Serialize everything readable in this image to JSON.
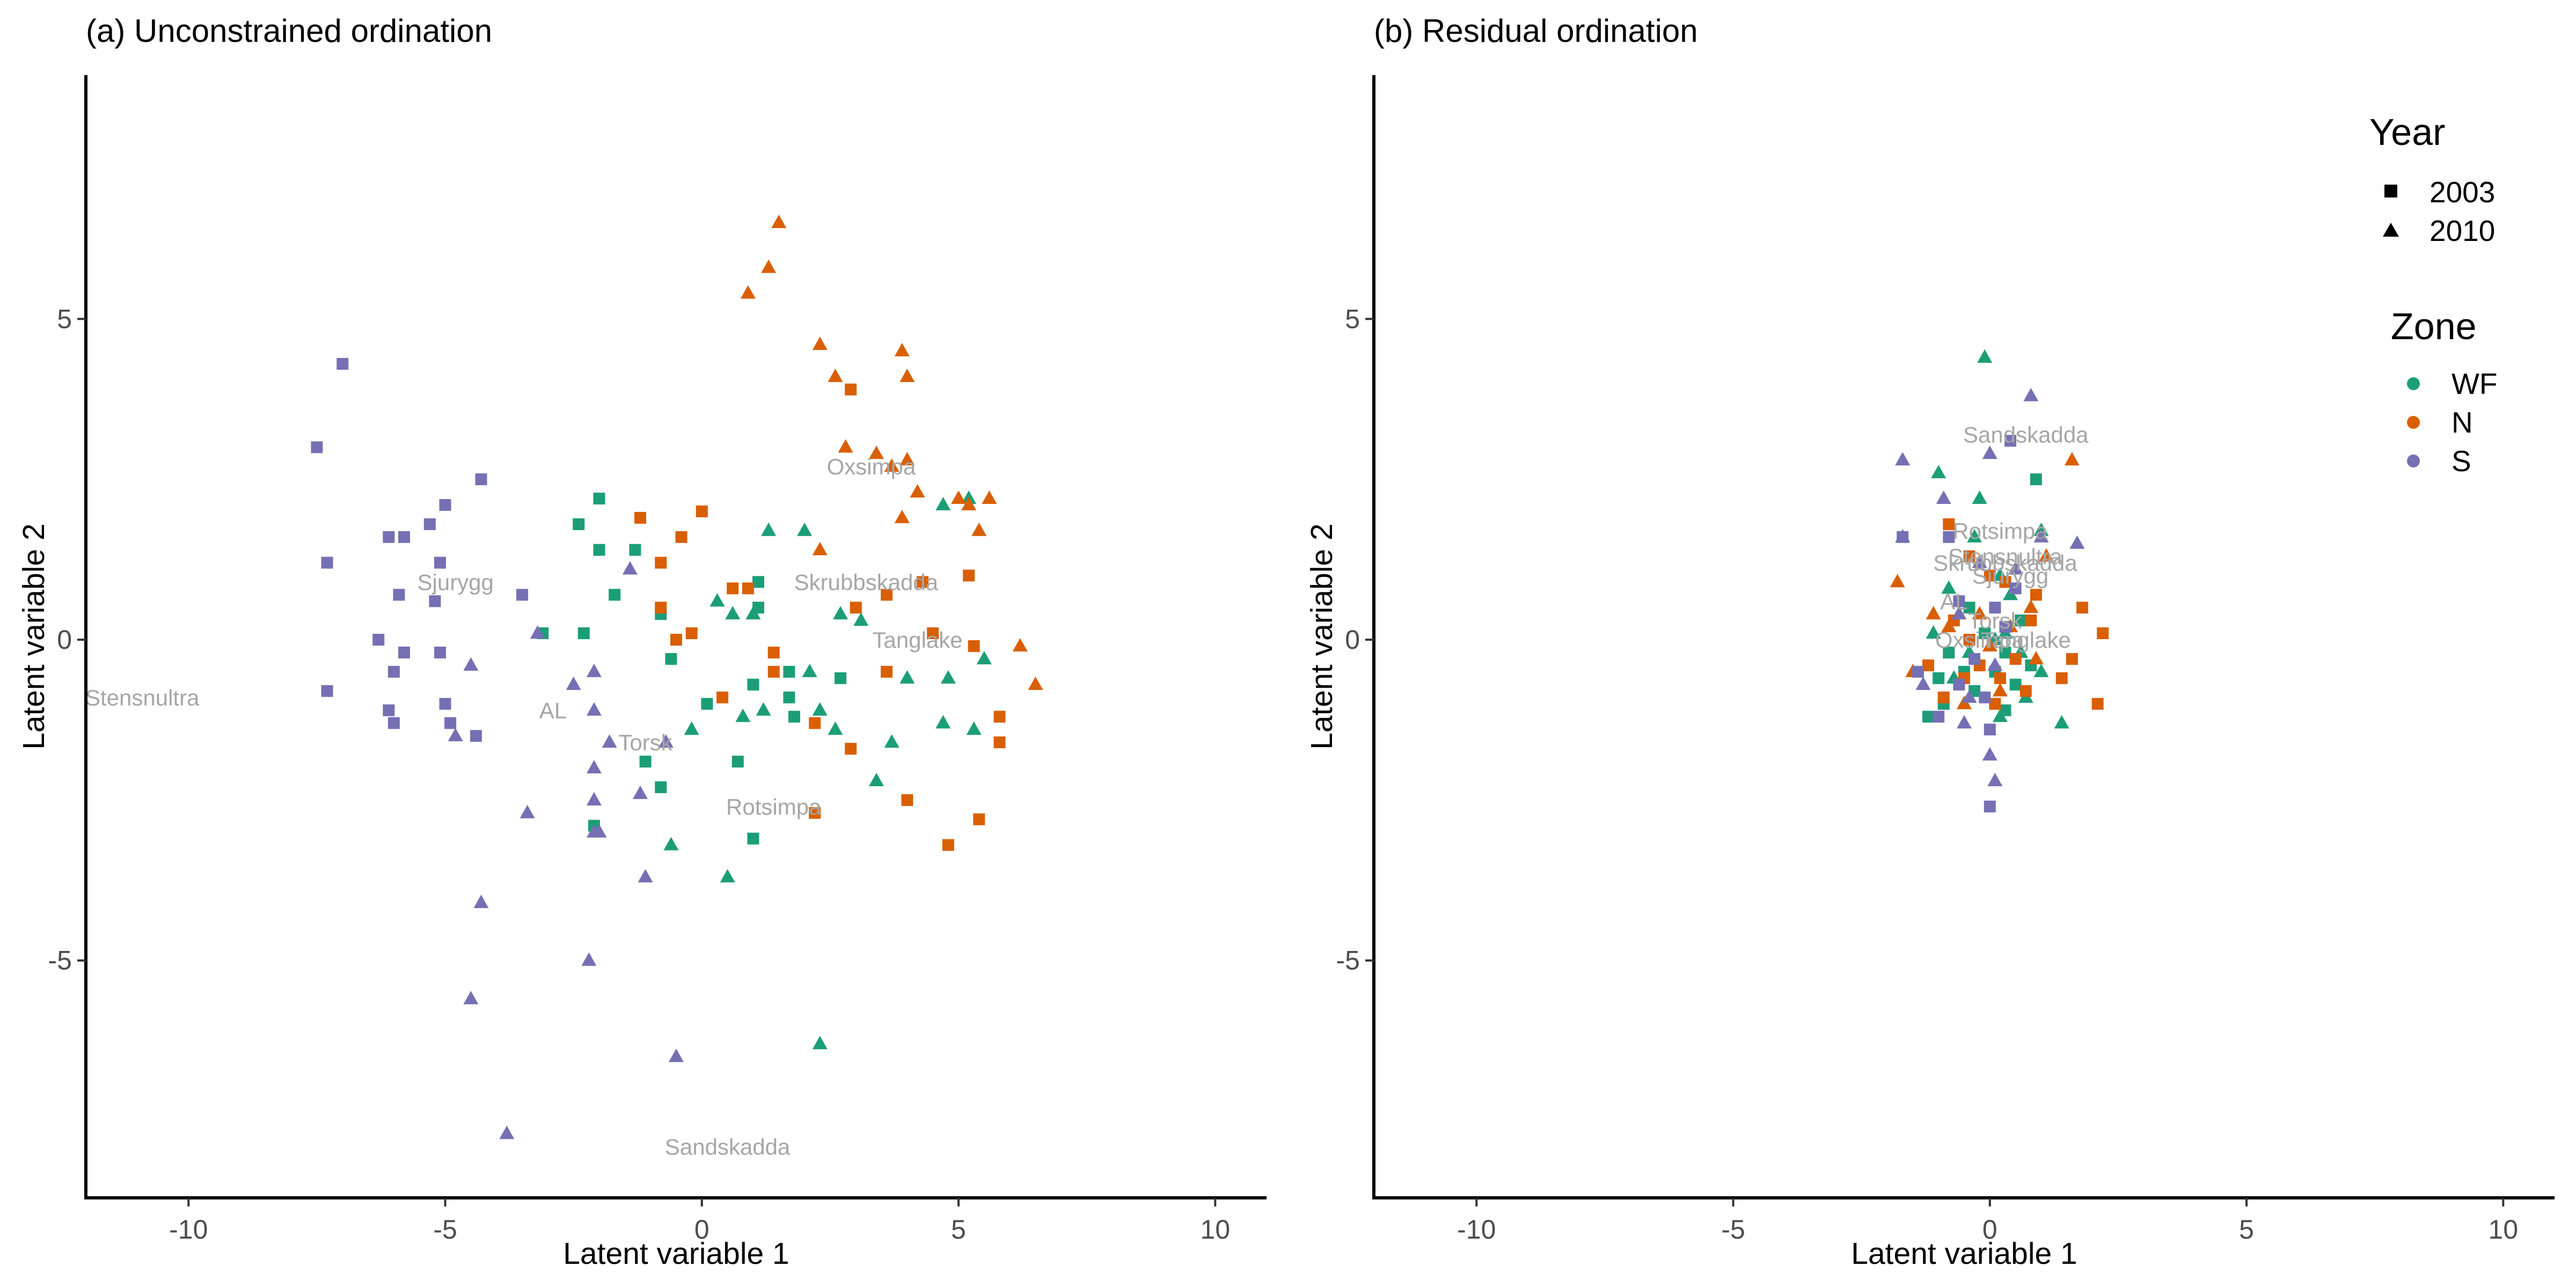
{
  "chart_data": [
    {
      "type": "scatter",
      "title": "(a) Unconstrained ordination",
      "xlabel": "Latent variable 1",
      "ylabel": "Latent variable 2",
      "xlim": [
        -12,
        11
      ],
      "ylim": [
        -8.7,
        8.8
      ],
      "xticks": [
        -10,
        -5,
        0,
        5,
        10
      ],
      "yticks": [
        5,
        0,
        -5
      ],
      "tick_labels_x": [
        "-10",
        "-5",
        "0",
        "5",
        "10"
      ],
      "tick_labels_y": [
        "5",
        "0",
        "-5"
      ],
      "grid": false,
      "points": {
        "WF_2003": [
          [
            -2.0,
            2.2
          ],
          [
            -2.4,
            1.8
          ],
          [
            -2.0,
            1.4
          ],
          [
            -1.3,
            1.4
          ],
          [
            -1.7,
            0.7
          ],
          [
            -2.3,
            0.1
          ],
          [
            -3.1,
            0.1
          ],
          [
            -0.8,
            0.4
          ],
          [
            -0.6,
            -0.3
          ],
          [
            1.1,
            0.9
          ],
          [
            1.1,
            0.5
          ],
          [
            0.1,
            -1.0
          ],
          [
            1.7,
            -0.5
          ],
          [
            1.7,
            -0.9
          ],
          [
            1.0,
            -0.7
          ],
          [
            1.8,
            -1.2
          ],
          [
            2.7,
            -0.6
          ],
          [
            0.7,
            -1.9
          ],
          [
            -1.1,
            -1.9
          ],
          [
            -0.8,
            -2.3
          ],
          [
            -2.1,
            -2.9
          ],
          [
            1.0,
            -3.1
          ]
        ],
        "WF_2010": [
          [
            1.3,
            1.7
          ],
          [
            2.0,
            1.7
          ],
          [
            0.3,
            0.6
          ],
          [
            0.6,
            0.4
          ],
          [
            1.0,
            0.4
          ],
          [
            2.7,
            0.4
          ],
          [
            3.1,
            0.3
          ],
          [
            2.1,
            -0.5
          ],
          [
            2.3,
            -1.1
          ],
          [
            2.6,
            -1.4
          ],
          [
            0.8,
            -1.2
          ],
          [
            -0.2,
            -1.4
          ],
          [
            1.2,
            -1.1
          ],
          [
            3.4,
            -2.2
          ],
          [
            -0.6,
            -3.2
          ],
          [
            0.5,
            -3.7
          ],
          [
            4.7,
            2.1
          ],
          [
            5.2,
            2.2
          ],
          [
            4.0,
            -0.6
          ],
          [
            4.8,
            -0.6
          ],
          [
            3.7,
            -1.6
          ],
          [
            4.7,
            -1.3
          ],
          [
            5.3,
            -1.4
          ],
          [
            5.5,
            -0.3
          ],
          [
            2.3,
            -6.3
          ]
        ],
        "N_2003": [
          [
            -1.2,
            1.9
          ],
          [
            -0.4,
            1.6
          ],
          [
            0.0,
            2.0
          ],
          [
            -0.8,
            1.2
          ],
          [
            0.9,
            0.8
          ],
          [
            -0.8,
            0.5
          ],
          [
            0.6,
            0.8
          ],
          [
            -0.2,
            0.1
          ],
          [
            -0.5,
            0.0
          ],
          [
            1.4,
            -0.2
          ],
          [
            1.4,
            -0.5
          ],
          [
            0.4,
            -0.9
          ],
          [
            2.2,
            -1.3
          ],
          [
            2.9,
            -1.7
          ],
          [
            2.2,
            -2.7
          ],
          [
            3.0,
            0.5
          ],
          [
            2.9,
            3.9
          ],
          [
            3.6,
            0.7
          ],
          [
            4.3,
            0.9
          ],
          [
            5.2,
            1.0
          ],
          [
            4.5,
            0.1
          ],
          [
            5.3,
            -0.1
          ],
          [
            3.6,
            -0.5
          ],
          [
            5.8,
            -1.2
          ],
          [
            5.8,
            -1.6
          ],
          [
            4.0,
            -2.5
          ],
          [
            5.4,
            -2.8
          ],
          [
            4.8,
            -3.2
          ]
        ],
        "N_2010": [
          [
            1.5,
            6.5
          ],
          [
            1.3,
            5.8
          ],
          [
            0.9,
            5.4
          ],
          [
            2.3,
            4.6
          ],
          [
            2.6,
            4.1
          ],
          [
            3.9,
            4.5
          ],
          [
            4.0,
            4.1
          ],
          [
            2.8,
            3.0
          ],
          [
            3.4,
            2.9
          ],
          [
            3.7,
            2.7
          ],
          [
            4.0,
            2.8
          ],
          [
            4.2,
            2.3
          ],
          [
            3.9,
            1.9
          ],
          [
            5.0,
            2.2
          ],
          [
            5.6,
            2.2
          ],
          [
            5.2,
            2.1
          ],
          [
            5.4,
            1.7
          ],
          [
            2.3,
            1.4
          ],
          [
            6.2,
            -0.1
          ],
          [
            6.5,
            -0.7
          ]
        ],
        "S_2003": [
          [
            -7.0,
            4.3
          ],
          [
            -7.5,
            3.0
          ],
          [
            -7.3,
            1.2
          ],
          [
            -6.1,
            1.6
          ],
          [
            -5.8,
            1.6
          ],
          [
            -5.3,
            1.8
          ],
          [
            -5.0,
            2.1
          ],
          [
            -5.1,
            1.2
          ],
          [
            -4.3,
            2.5
          ],
          [
            -5.9,
            0.7
          ],
          [
            -5.2,
            0.6
          ],
          [
            -3.5,
            0.7
          ],
          [
            -6.3,
            0.0
          ],
          [
            -5.8,
            -0.2
          ],
          [
            -6.0,
            -0.5
          ],
          [
            -5.1,
            -0.2
          ],
          [
            -7.3,
            -0.8
          ],
          [
            -6.1,
            -1.1
          ],
          [
            -5.0,
            -1.0
          ],
          [
            -6.0,
            -1.3
          ],
          [
            -4.9,
            -1.3
          ],
          [
            -4.4,
            -1.5
          ]
        ],
        "S_2010": [
          [
            -4.5,
            -0.4
          ],
          [
            -4.8,
            -1.5
          ],
          [
            -3.2,
            0.1
          ],
          [
            -2.5,
            -0.7
          ],
          [
            -2.1,
            -0.5
          ],
          [
            -2.1,
            -1.1
          ],
          [
            -1.4,
            1.1
          ],
          [
            -1.8,
            -1.6
          ],
          [
            -2.1,
            -2.0
          ],
          [
            -2.1,
            -2.5
          ],
          [
            -2.1,
            -3.0
          ],
          [
            -2.0,
            -3.0
          ],
          [
            -3.4,
            -2.7
          ],
          [
            -1.2,
            -2.4
          ],
          [
            -1.1,
            -3.7
          ],
          [
            -0.7,
            -1.6
          ],
          [
            -4.3,
            -4.1
          ],
          [
            -4.5,
            -5.6
          ],
          [
            -2.2,
            -5.0
          ],
          [
            -0.5,
            -6.5
          ],
          [
            -3.8,
            -7.7
          ]
        ]
      },
      "site_labels": [
        {
          "name": "Stensnultra",
          "x": -10.9,
          "y": -0.9
        },
        {
          "name": "Sjurygg",
          "x": -4.8,
          "y": 0.9
        },
        {
          "name": "AL",
          "x": -2.9,
          "y": -1.1
        },
        {
          "name": "Torsk",
          "x": -1.1,
          "y": -1.6
        },
        {
          "name": "Oxsimpa",
          "x": 3.3,
          "y": 2.7
        },
        {
          "name": "Skrubbskadda",
          "x": 3.2,
          "y": 0.9
        },
        {
          "name": "Tanglake",
          "x": 4.2,
          "y": 0.0
        },
        {
          "name": "Rotsimpa",
          "x": 1.4,
          "y": -2.6
        },
        {
          "name": "Sandskadda",
          "x": 0.5,
          "y": -7.9
        }
      ]
    },
    {
      "type": "scatter",
      "title": "(b) Residual ordination",
      "xlabel": "Latent variable 1",
      "ylabel": "Latent variable 2",
      "xlim": [
        -12,
        11
      ],
      "ylim": [
        -8.7,
        8.8
      ],
      "xticks": [
        -10,
        -5,
        0,
        5,
        10
      ],
      "yticks": [
        5,
        0,
        -5
      ],
      "tick_labels_x": [
        "-10",
        "-5",
        "0",
        "5",
        "10"
      ],
      "tick_labels_y": [
        "5",
        "0",
        "-5"
      ],
      "grid": false,
      "points": {
        "WF_2003": [
          [
            -1.2,
            -1.2
          ],
          [
            -0.9,
            -1.0
          ],
          [
            -0.8,
            -0.2
          ],
          [
            -0.3,
            -0.8
          ],
          [
            0.1,
            -0.5
          ],
          [
            0.5,
            -0.7
          ],
          [
            0.8,
            -0.4
          ],
          [
            -0.1,
            0.1
          ],
          [
            0.3,
            -0.2
          ],
          [
            -0.5,
            -0.5
          ],
          [
            0.3,
            -1.1
          ],
          [
            0.9,
            2.5
          ],
          [
            -1.0,
            -0.6
          ],
          [
            0.6,
            0.3
          ],
          [
            -0.4,
            0.5
          ]
        ],
        "WF_2010": [
          [
            -0.1,
            4.4
          ],
          [
            -0.2,
            2.2
          ],
          [
            -0.3,
            1.6
          ],
          [
            -0.8,
            0.8
          ],
          [
            -0.4,
            -0.2
          ],
          [
            0.1,
            0.0
          ],
          [
            0.4,
            0.7
          ],
          [
            1.0,
            -0.5
          ],
          [
            1.4,
            -1.3
          ],
          [
            0.7,
            -0.9
          ],
          [
            0.2,
            -1.2
          ],
          [
            -0.7,
            -0.6
          ],
          [
            -1.1,
            0.1
          ],
          [
            -1.7,
            1.6
          ],
          [
            -1.0,
            2.6
          ],
          [
            -0.5,
            -1.0
          ],
          [
            0.6,
            -0.2
          ],
          [
            0.3,
            0.1
          ],
          [
            0.2,
            1.0
          ],
          [
            1.0,
            1.7
          ]
        ],
        "N_2003": [
          [
            -0.8,
            1.8
          ],
          [
            -0.4,
            1.3
          ],
          [
            0.0,
            1.0
          ],
          [
            0.3,
            0.9
          ],
          [
            0.9,
            0.7
          ],
          [
            1.8,
            0.5
          ],
          [
            2.2,
            0.1
          ],
          [
            2.1,
            -1.0
          ],
          [
            1.6,
            -0.3
          ],
          [
            1.4,
            -0.6
          ],
          [
            0.7,
            -0.8
          ],
          [
            0.5,
            -0.3
          ],
          [
            0.2,
            -0.6
          ],
          [
            -0.2,
            -0.4
          ],
          [
            -0.5,
            -0.6
          ],
          [
            -0.9,
            -0.9
          ],
          [
            -1.2,
            -0.4
          ],
          [
            -0.7,
            0.3
          ],
          [
            0.1,
            -1.0
          ],
          [
            -0.4,
            0.0
          ],
          [
            0.8,
            0.3
          ]
        ],
        "N_2010": [
          [
            -1.8,
            0.9
          ],
          [
            -1.1,
            0.4
          ],
          [
            -1.5,
            -0.5
          ],
          [
            -0.5,
            -1.0
          ],
          [
            0.0,
            -0.1
          ],
          [
            0.4,
            0.2
          ],
          [
            0.8,
            0.5
          ],
          [
            1.1,
            1.3
          ],
          [
            1.6,
            2.8
          ],
          [
            0.9,
            -0.3
          ],
          [
            -0.2,
            0.4
          ],
          [
            0.2,
            -0.8
          ],
          [
            -0.8,
            0.2
          ]
        ],
        "S_2003": [
          [
            -1.7,
            1.6
          ],
          [
            -1.4,
            -0.5
          ],
          [
            -0.8,
            1.6
          ],
          [
            -0.6,
            0.6
          ],
          [
            -0.3,
            -0.3
          ],
          [
            0.0,
            -1.4
          ],
          [
            0.0,
            -2.6
          ],
          [
            0.4,
            3.1
          ],
          [
            0.5,
            0.8
          ],
          [
            0.3,
            0.2
          ],
          [
            -0.1,
            -0.9
          ],
          [
            -1.0,
            -1.2
          ],
          [
            -0.6,
            -0.7
          ],
          [
            0.1,
            0.5
          ]
        ],
        "S_2010": [
          [
            -1.7,
            2.8
          ],
          [
            -0.9,
            2.2
          ],
          [
            0.0,
            2.9
          ],
          [
            0.8,
            3.8
          ],
          [
            1.0,
            1.6
          ],
          [
            1.7,
            1.5
          ],
          [
            0.5,
            1.1
          ],
          [
            -0.2,
            1.2
          ],
          [
            -0.6,
            0.4
          ],
          [
            0.1,
            -0.4
          ],
          [
            -0.5,
            -1.3
          ],
          [
            0.0,
            -1.8
          ],
          [
            0.1,
            -2.2
          ],
          [
            -0.4,
            -0.9
          ],
          [
            -1.3,
            -0.7
          ]
        ]
      },
      "site_labels": [
        {
          "name": "Sandskadda",
          "x": 0.7,
          "y": 3.2
        },
        {
          "name": "Rotsimpa",
          "x": 0.2,
          "y": 1.7
        },
        {
          "name": "Stensnultra",
          "x": 0.3,
          "y": 1.3
        },
        {
          "name": "Skrubbskadda",
          "x": 0.3,
          "y": 1.2
        },
        {
          "name": "Sjurygg",
          "x": 0.4,
          "y": 1.0
        },
        {
          "name": "AL",
          "x": -0.7,
          "y": 0.6
        },
        {
          "name": "Torsk",
          "x": 0.1,
          "y": 0.3
        },
        {
          "name": "Oxsimpa",
          "x": -0.2,
          "y": 0.0
        },
        {
          "name": "Tanglake",
          "x": 0.7,
          "y": 0.0
        }
      ]
    }
  ],
  "legend": {
    "placement": "top-right",
    "year_title": "Year",
    "year_items": [
      "2003",
      "2010"
    ],
    "zone_title": "Zone",
    "zone_items": [
      "WF",
      "N",
      "S"
    ]
  },
  "colors": {
    "WF": "#1b9e77",
    "N": "#d95f02",
    "S": "#7570b3",
    "site_label": "#a6a6a6",
    "axis": "#000000",
    "tick_label": "#4d4d4d"
  },
  "markers": {
    "2003": "square",
    "2010": "triangle"
  }
}
